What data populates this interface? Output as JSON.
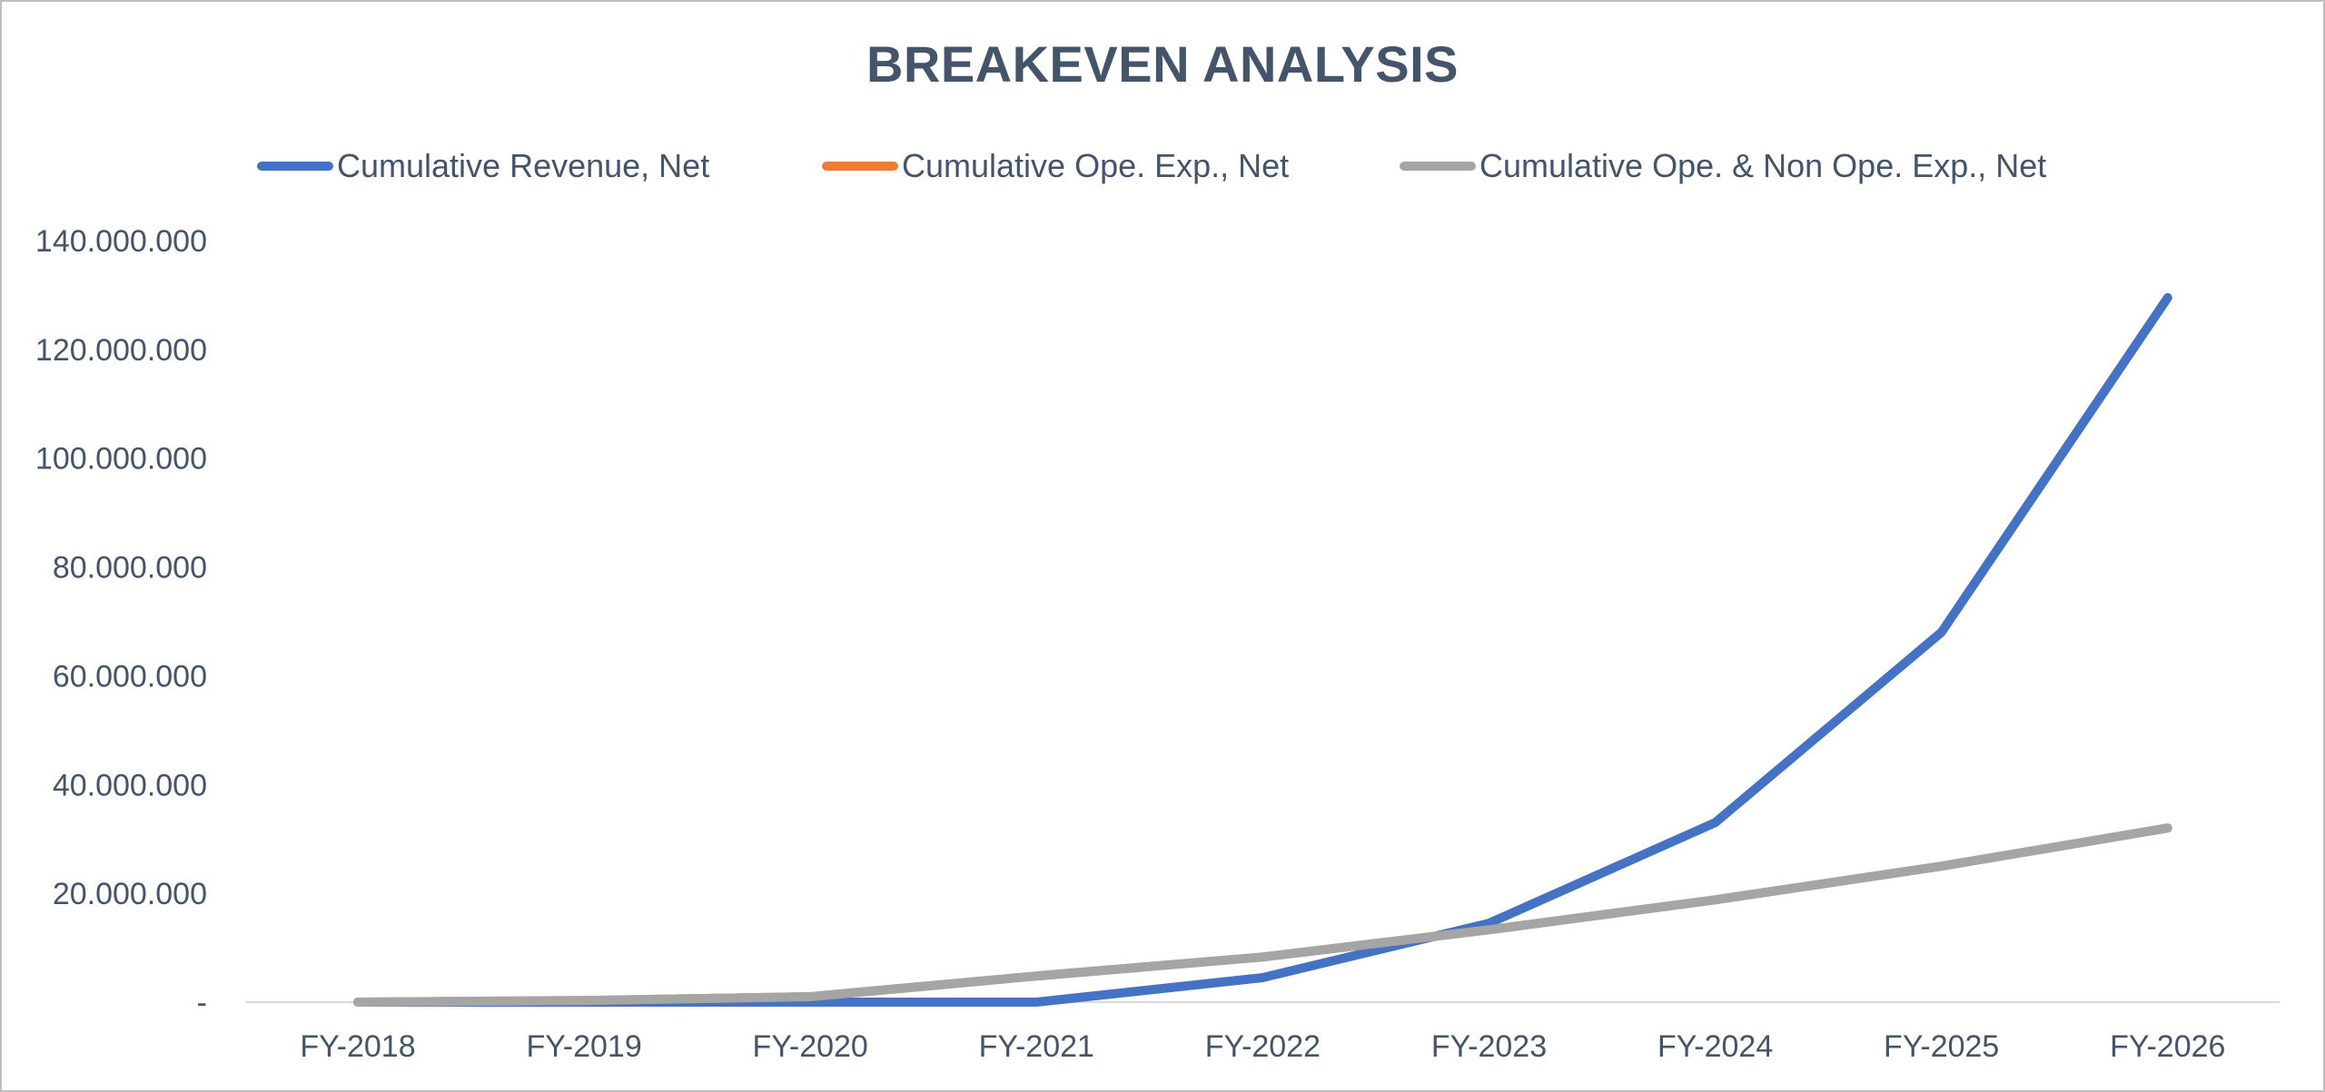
{
  "chart_data": {
    "type": "line",
    "title": "BREAKEVEN ANALYSIS",
    "xlabel": "",
    "ylabel": "",
    "categories": [
      "FY-2018",
      "FY-2019",
      "FY-2020",
      "FY-2021",
      "FY-2022",
      "FY-2023",
      "FY-2024",
      "FY-2025",
      "FY-2026"
    ],
    "ylim": [
      0,
      140000000
    ],
    "yticks": [
      0,
      20000000,
      40000000,
      60000000,
      80000000,
      100000000,
      120000000,
      140000000
    ],
    "ytick_labels": [
      "-",
      "20.000.000",
      "40.000.000",
      "60.000.000",
      "80.000.000",
      "100.000.000",
      "120.000.000",
      "140.000.000"
    ],
    "grid": false,
    "legend_position": "top",
    "series": [
      {
        "name": "Cumulative Revenue, Net",
        "color": "#4472c4",
        "values": [
          0,
          0,
          0,
          0,
          4500000,
          14500000,
          33000000,
          68000000,
          129500000
        ]
      },
      {
        "name": "Cumulative Ope. Exp., Net",
        "color": "#ed7d31",
        "values": [
          0,
          300000,
          1000000,
          4800000,
          8300000,
          13300000,
          18800000,
          25000000,
          32000000
        ]
      },
      {
        "name": "Cumulative Ope. & Non Ope. Exp., Net",
        "color": "#a5a5a5",
        "values": [
          0,
          300000,
          1000000,
          4800000,
          8300000,
          13300000,
          18800000,
          25000000,
          32000000
        ]
      }
    ]
  }
}
